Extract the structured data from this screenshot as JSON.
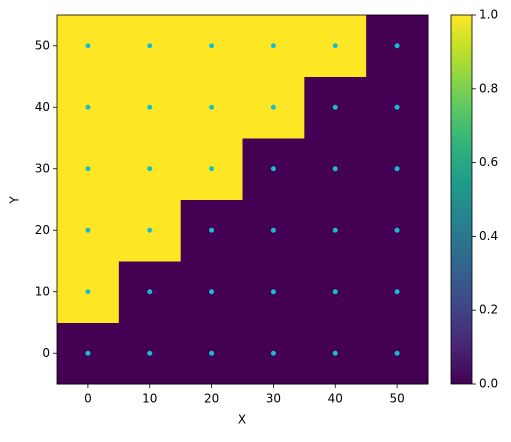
{
  "chart_data": {
    "type": "heatmap",
    "xlabel": "X",
    "ylabel": "Y",
    "x": [
      0,
      10,
      20,
      30,
      40,
      50
    ],
    "y": [
      0,
      10,
      20,
      30,
      40,
      50
    ],
    "z": [
      [
        0,
        0,
        0,
        0,
        0,
        0
      ],
      [
        1,
        0,
        0,
        0,
        0,
        0
      ],
      [
        1,
        1,
        0,
        0,
        0,
        0
      ],
      [
        1,
        1,
        1,
        0,
        0,
        0
      ],
      [
        1,
        1,
        1,
        1,
        0,
        0
      ],
      [
        1,
        1,
        1,
        1,
        1,
        0
      ]
    ],
    "colormap": "viridis",
    "point_color": "#17becf",
    "xlim": [
      -5,
      55
    ],
    "ylim": [
      -5,
      55
    ],
    "xticks": [
      0,
      10,
      20,
      30,
      40,
      50
    ],
    "yticks": [
      0,
      10,
      20,
      30,
      40,
      50
    ],
    "clim": [
      0,
      1
    ],
    "cticks": [
      {
        "value": 0,
        "label": "0.0"
      },
      {
        "value": 0.2,
        "label": "0.2"
      },
      {
        "value": 0.4,
        "label": "0.4"
      },
      {
        "value": 0.6,
        "label": "0.6"
      },
      {
        "value": 0.8,
        "label": "0.8"
      },
      {
        "value": 1,
        "label": "1.0"
      }
    ]
  }
}
